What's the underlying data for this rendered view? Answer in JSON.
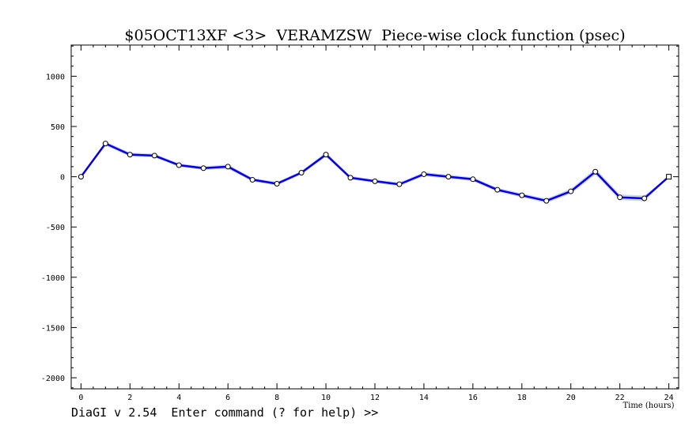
{
  "title": "$05OCT13XF <3>  VERAMZSW  Piece-wise clock function (psec)",
  "prompt": "DiaGI v 2.54  Enter command (? for help) >>",
  "colors": {
    "line": "#0a00c8",
    "band": "#c8d2f5",
    "marker_fill": "#ffffff",
    "marker_stroke": "#000000",
    "frame": "#000000"
  },
  "chart_data": {
    "type": "line",
    "title": "$05OCT13XF <3>  VERAMZSW  Piece-wise clock function (psec)",
    "xlabel": "Time (hours)",
    "ylabel": "",
    "xlim": [
      -0.4,
      24.4
    ],
    "ylim": [
      -2110,
      1310
    ],
    "x_ticks": [
      0,
      2,
      4,
      6,
      8,
      10,
      12,
      14,
      16,
      18,
      20,
      22,
      24
    ],
    "y_ticks": [
      1000,
      500,
      0,
      -500,
      -1000,
      -1500,
      -2000
    ],
    "grid": false,
    "series": [
      {
        "x": [
          0,
          1,
          2,
          3,
          4,
          5,
          6,
          7,
          8,
          9,
          10,
          11,
          12,
          13,
          14,
          15,
          16,
          17,
          18,
          19,
          20,
          21,
          22,
          23,
          24
        ],
        "y": [
          0,
          330,
          220,
          210,
          115,
          85,
          100,
          -30,
          -70,
          40,
          220,
          -10,
          -45,
          -75,
          25,
          0,
          -25,
          -130,
          -185,
          -240,
          -145,
          50,
          -205,
          -215,
          0
        ],
        "band": [
          5,
          20,
          20,
          18,
          18,
          18,
          22,
          18,
          18,
          18,
          22,
          18,
          18,
          18,
          20,
          20,
          20,
          20,
          20,
          22,
          25,
          30,
          28,
          28,
          5
        ]
      }
    ]
  }
}
